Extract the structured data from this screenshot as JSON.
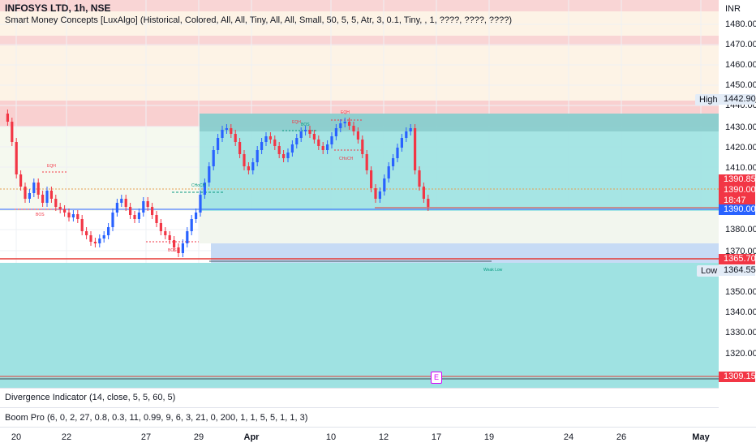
{
  "header": {
    "symbol": "INFOSYS LTD, 1h, NSE",
    "indicator": "Smart Money Concepts [LuxAlgo] (Historical, Colored, All, All, Tiny, All, All, Small, 50, 5, 5, Atr, 3, 0.1, Tiny, , 1, ????, ????, ????)"
  },
  "currency": "INR",
  "price_axis": [
    "1480.00",
    "1470.00",
    "1460.00",
    "1450.00",
    "1440.00",
    "1430.00",
    "1420.00",
    "1410.00",
    "1380.00",
    "1370.00",
    "1350.00",
    "1340.00",
    "1330.00",
    "1320.00"
  ],
  "tags": {
    "high_label": "High",
    "high_value": "1442.90",
    "low_label": "Low",
    "low_value": "1364.55",
    "last_price": "1390.85",
    "ask_price": "1390.00",
    "countdown": "18:47",
    "bid_price": "1390.00",
    "red_level": "1365.70",
    "bottom_level": "1309.15"
  },
  "annotations": {
    "eqh_left": "EQH",
    "eqh_right": "EQH",
    "eqh_mid": "EQH",
    "bos_left": "BOS",
    "bos_mid": "BOS",
    "bos_top": "BOS",
    "choch_left": "CHoCH",
    "choch_right": "CHoCH",
    "weak_low": "Weak Low",
    "event_marker": "E"
  },
  "panes": {
    "divergence": "Divergence Indicator (14, close, 5, 5, 60, 5)",
    "boom": "Boom Pro (6, 0, 2, 27, 0.8, 0.3, 11, 0.99, 9, 6, 3, 21, 0, 200, 1, 1, 5, 5, 1, 1, 3)"
  },
  "time_axis": [
    {
      "label": "20",
      "bold": false
    },
    {
      "label": "22",
      "bold": false
    },
    {
      "label": "27",
      "bold": false
    },
    {
      "label": "29",
      "bold": false
    },
    {
      "label": "Apr",
      "bold": true
    },
    {
      "label": "10",
      "bold": false
    },
    {
      "label": "12",
      "bold": false
    },
    {
      "label": "17",
      "bold": false
    },
    {
      "label": "19",
      "bold": false
    },
    {
      "label": "24",
      "bold": false
    },
    {
      "label": "26",
      "bold": false
    },
    {
      "label": "May",
      "bold": true
    }
  ],
  "colors": {
    "up": "#2962ff",
    "down": "#f23645",
    "zone_teal": "#4dd0d0",
    "zone_red": "#f7c6c6",
    "zone_cream": "#fdf3e3"
  }
}
